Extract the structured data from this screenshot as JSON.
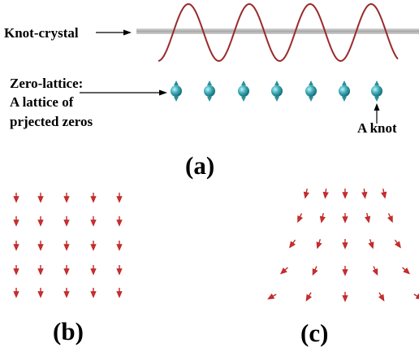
{
  "panel_a": {
    "knot_crystal_label": "Knot-crystal",
    "zero_lattice_label": [
      "Zero-lattice:",
      "A lattice of",
      "prjected zeros"
    ],
    "knot_label": "A knot",
    "caption": "(a)"
  },
  "panel_b": {
    "caption": "(b)"
  },
  "panel_c": {
    "caption": "(c)"
  }
}
